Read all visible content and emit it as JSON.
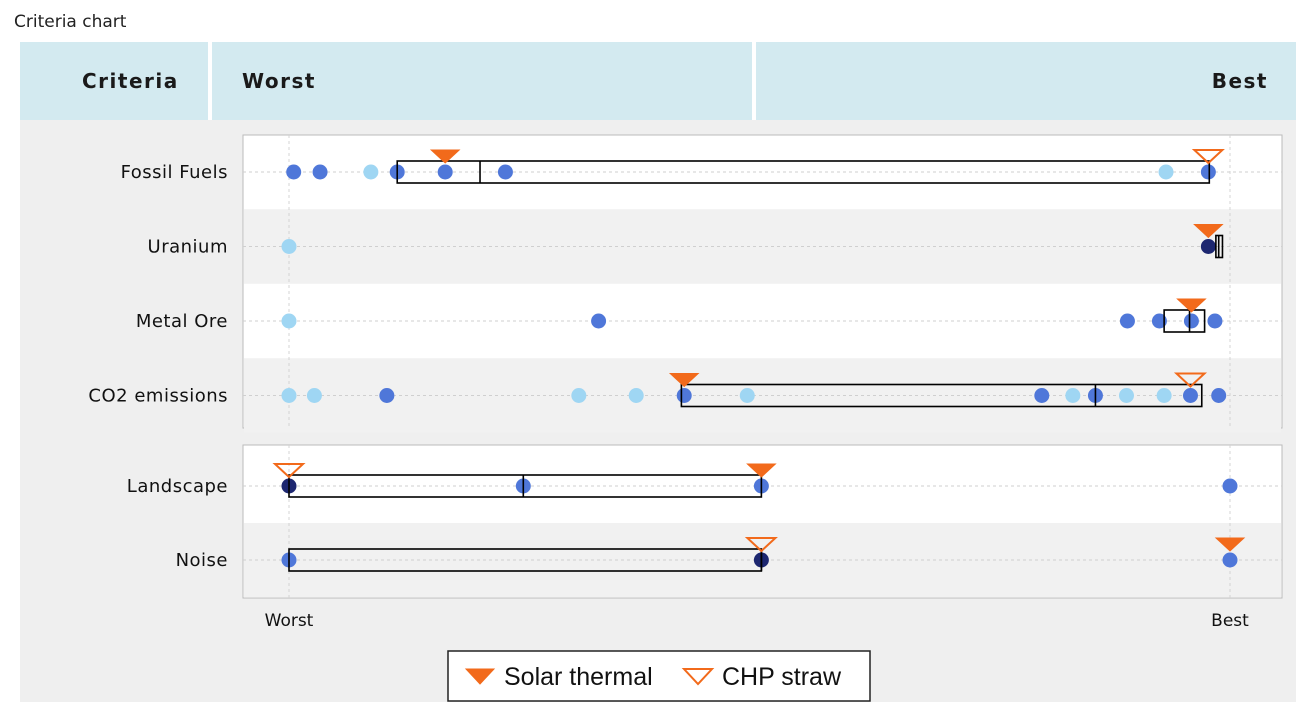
{
  "page": {
    "title": "Criteria chart"
  },
  "header": {
    "criteria_label": "Criteria",
    "worst_label": "Worst",
    "best_label": "Best"
  },
  "colors": {
    "header_bg": "#d3eaf0",
    "panel_bg": "#efefef",
    "plot_bg": "#ffffff",
    "band_alt": "#f1f1f1",
    "dot_medium": "#4f77d9",
    "dot_light": "#9fd6f3",
    "dot_dark": "#1d2770",
    "marker_orange": "#f26a1b"
  },
  "chart_data": {
    "type": "scatter",
    "x_axis": {
      "min": 0,
      "max": 1,
      "tick_labels": [
        "Worst",
        "Best"
      ],
      "tick_values": [
        0,
        1
      ]
    },
    "groups": [
      {
        "criteria": [
          {
            "label": "Fossil Fuels",
            "points": [
              {
                "x": 0.005,
                "shade": "medium"
              },
              {
                "x": 0.033,
                "shade": "medium"
              },
              {
                "x": 0.087,
                "shade": "light"
              },
              {
                "x": 0.115,
                "shade": "medium"
              },
              {
                "x": 0.166,
                "shade": "medium"
              },
              {
                "x": 0.23,
                "shade": "medium"
              },
              {
                "x": 0.932,
                "shade": "light"
              },
              {
                "x": 0.977,
                "shade": "medium"
              }
            ],
            "range": {
              "min": 0.115,
              "median": 0.203,
              "max": 0.978
            },
            "solar_thermal": 0.166,
            "chp_straw": 0.977
          },
          {
            "label": "Uranium",
            "points": [
              {
                "x": 0.0,
                "shade": "light"
              },
              {
                "x": 0.977,
                "shade": "dark"
              }
            ],
            "range": {
              "min": 0.985,
              "median": 0.988,
              "max": 0.992
            },
            "solar_thermal": 0.977,
            "chp_straw": null
          },
          {
            "label": "Metal Ore",
            "points": [
              {
                "x": 0.0,
                "shade": "light"
              },
              {
                "x": 0.329,
                "shade": "medium"
              },
              {
                "x": 0.891,
                "shade": "medium"
              },
              {
                "x": 0.925,
                "shade": "medium"
              },
              {
                "x": 0.959,
                "shade": "medium"
              },
              {
                "x": 0.984,
                "shade": "medium"
              }
            ],
            "range": {
              "min": 0.93,
              "median": 0.957,
              "max": 0.973
            },
            "solar_thermal": 0.959,
            "chp_straw": null
          },
          {
            "label": "CO2 emissions",
            "points": [
              {
                "x": 0.0,
                "shade": "light"
              },
              {
                "x": 0.027,
                "shade": "light"
              },
              {
                "x": 0.104,
                "shade": "medium"
              },
              {
                "x": 0.308,
                "shade": "light"
              },
              {
                "x": 0.369,
                "shade": "light"
              },
              {
                "x": 0.42,
                "shade": "medium"
              },
              {
                "x": 0.487,
                "shade": "light"
              },
              {
                "x": 0.8,
                "shade": "medium"
              },
              {
                "x": 0.833,
                "shade": "light"
              },
              {
                "x": 0.857,
                "shade": "medium"
              },
              {
                "x": 0.89,
                "shade": "light"
              },
              {
                "x": 0.93,
                "shade": "light"
              },
              {
                "x": 0.958,
                "shade": "medium"
              },
              {
                "x": 0.988,
                "shade": "medium"
              }
            ],
            "range": {
              "min": 0.417,
              "median": 0.857,
              "max": 0.97
            },
            "solar_thermal": 0.42,
            "chp_straw": 0.958
          }
        ]
      },
      {
        "criteria": [
          {
            "label": "Landscape",
            "points": [
              {
                "x": 0.0,
                "shade": "dark"
              },
              {
                "x": 0.249,
                "shade": "medium"
              },
              {
                "x": 0.502,
                "shade": "medium"
              },
              {
                "x": 1.0,
                "shade": "medium"
              }
            ],
            "range": {
              "min": 0.0,
              "median": 0.249,
              "max": 0.502
            },
            "solar_thermal": 0.502,
            "chp_straw": 0.0
          },
          {
            "label": "Noise",
            "points": [
              {
                "x": 0.0,
                "shade": "medium"
              },
              {
                "x": 0.502,
                "shade": "dark"
              },
              {
                "x": 1.0,
                "shade": "medium"
              }
            ],
            "range": {
              "min": 0.0,
              "median": 0.502,
              "max": 0.502
            },
            "solar_thermal": 1.0,
            "chp_straw": 0.502
          }
        ]
      }
    ],
    "legend": [
      {
        "name": "Solar thermal",
        "marker": "filled-down-triangle"
      },
      {
        "name": "CHP straw",
        "marker": "hollow-down-triangle"
      }
    ],
    "legend_position": "bottom-center",
    "grid": true
  }
}
